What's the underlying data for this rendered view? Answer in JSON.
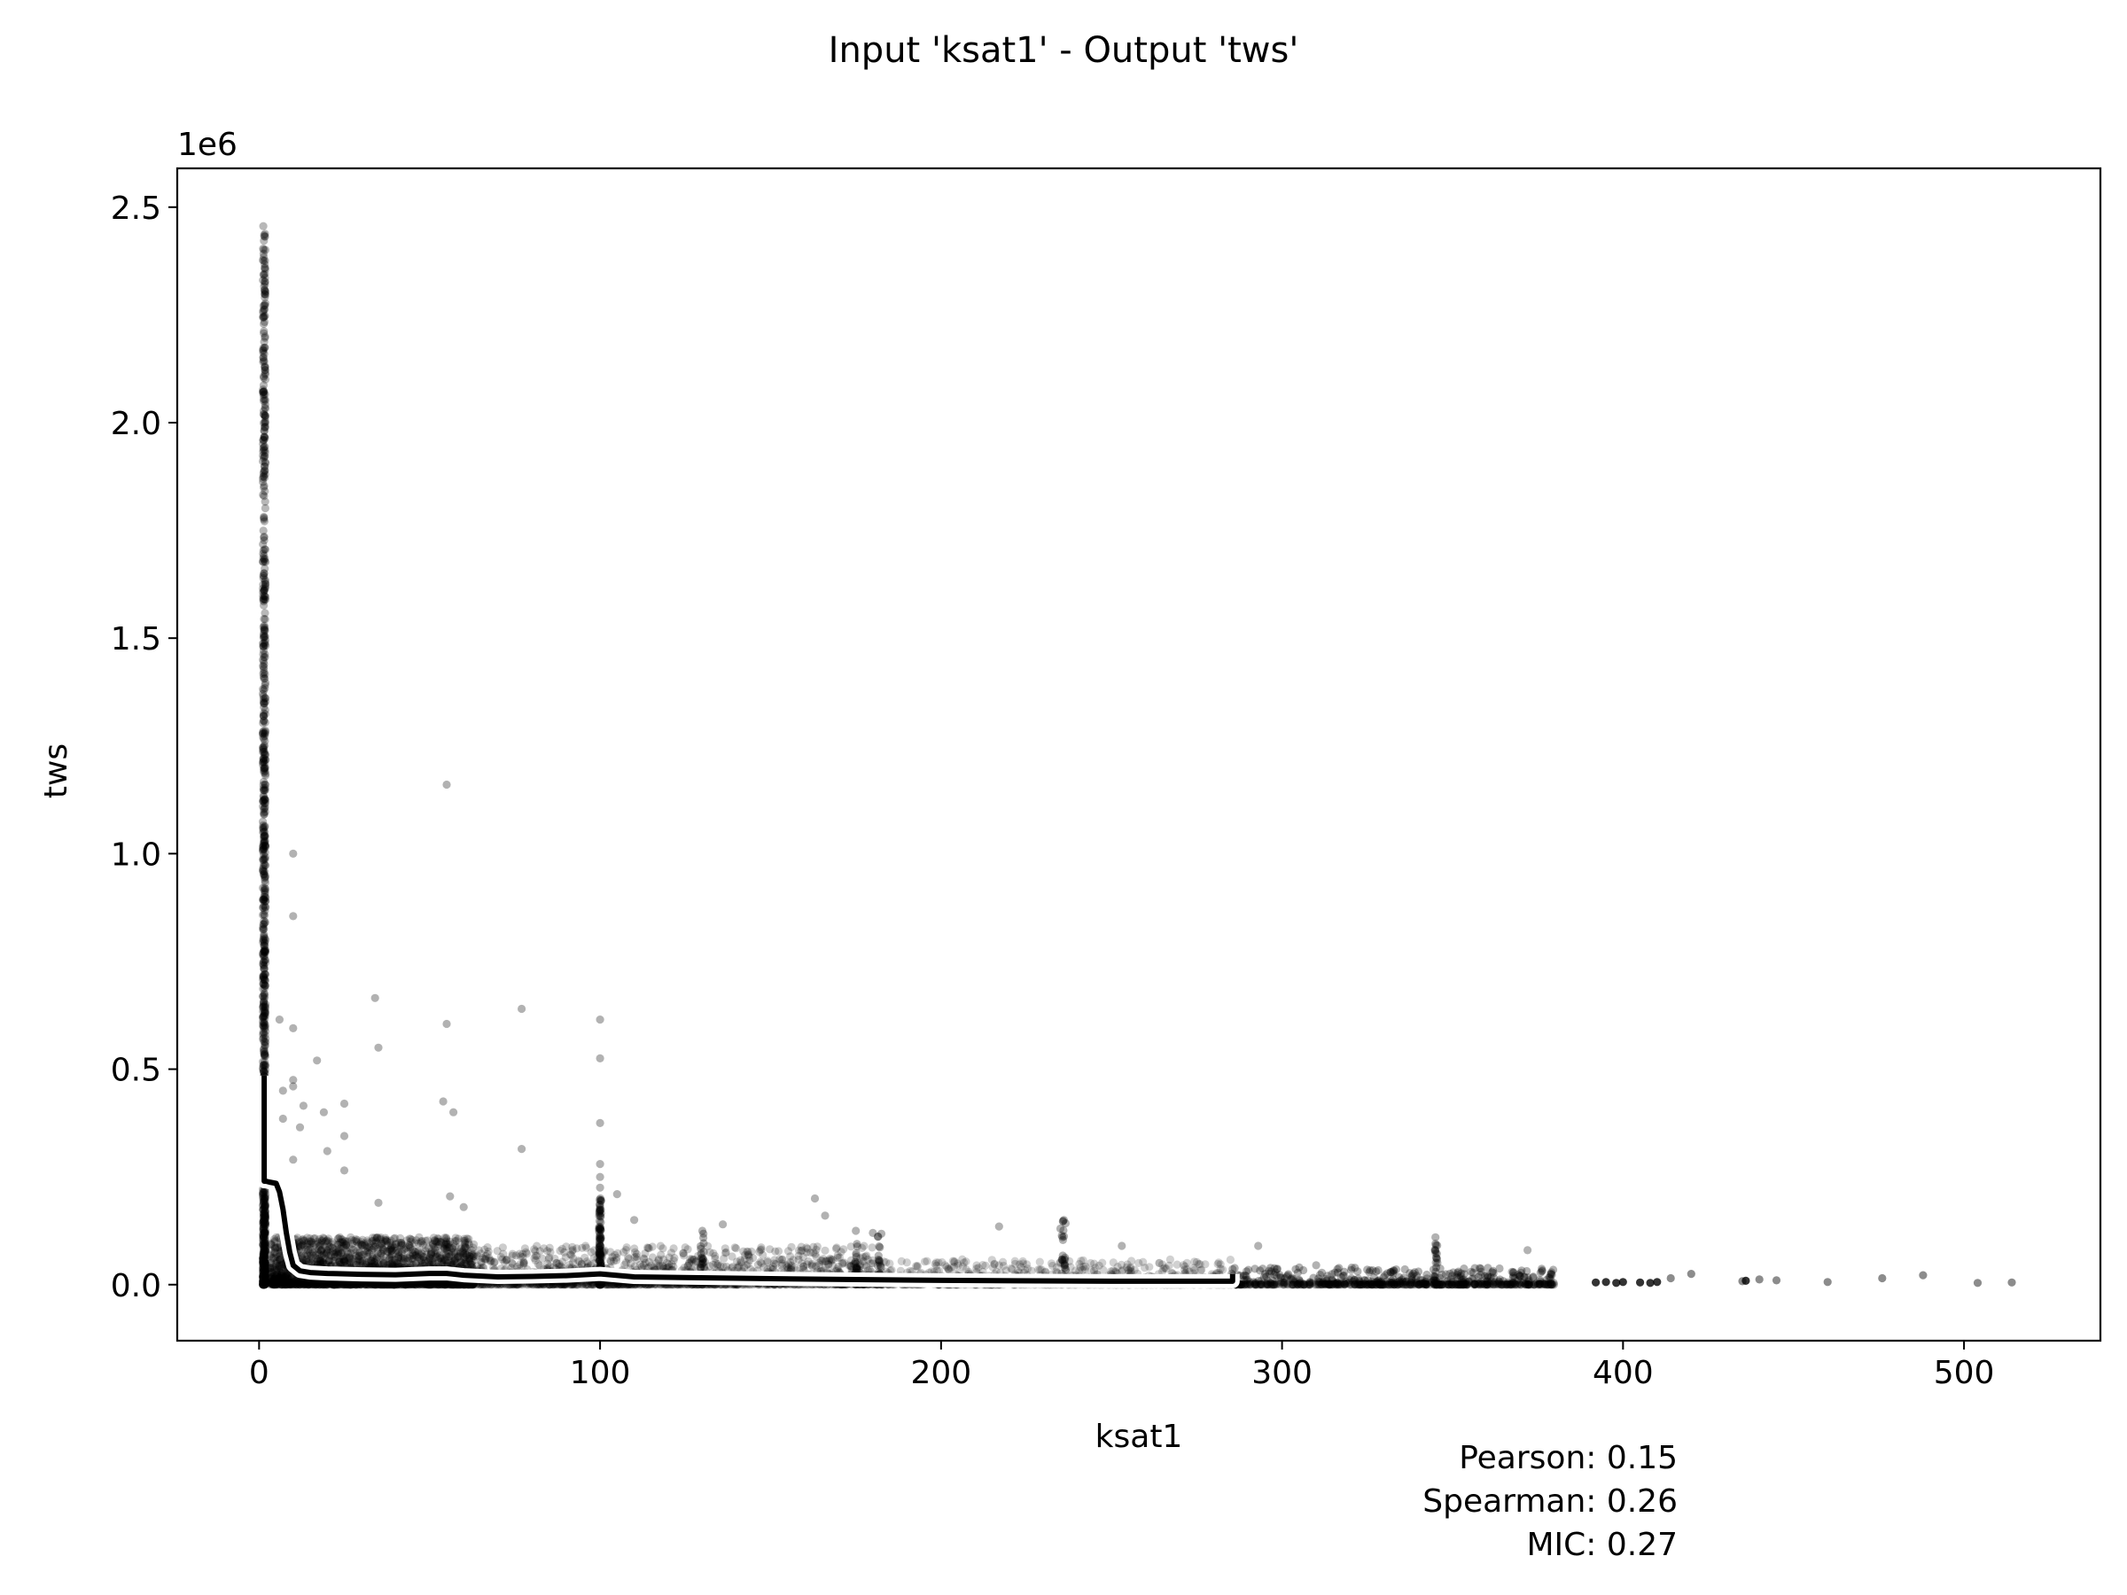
{
  "chart_data": {
    "type": "scatter",
    "title": "Input 'ksat1' - Output 'tws'",
    "xlabel": "ksat1",
    "ylabel": "tws",
    "y_offset_label": "1e6",
    "xlim": [
      -24,
      540
    ],
    "ylim": [
      -130000,
      2590000
    ],
    "x_ticks": [
      0,
      100,
      200,
      300,
      400,
      500
    ],
    "x_tick_labels": [
      "0",
      "100",
      "200",
      "300",
      "400",
      "500"
    ],
    "y_ticks": [
      0,
      500000,
      1000000,
      1500000,
      2000000,
      2500000
    ],
    "y_tick_labels": [
      "0.0",
      "0.5",
      "1.0",
      "1.5",
      "2.0",
      "2.5"
    ],
    "grid": false,
    "stats": [
      "Pearson: 0.15",
      "Spearman: 0.26",
      "MIC: 0.27"
    ],
    "colors": {
      "points": "#000000",
      "trend": "#000000",
      "trend_halo": "#ffffff"
    },
    "outliers": [
      [
        55,
        1160000
      ],
      [
        10,
        1000000
      ],
      [
        10,
        855000
      ],
      [
        34,
        665000
      ],
      [
        77,
        640000
      ],
      [
        100,
        615000
      ],
      [
        6,
        615000
      ],
      [
        55,
        605000
      ],
      [
        10,
        595000
      ],
      [
        35,
        550000
      ],
      [
        100,
        525000
      ],
      [
        17,
        520000
      ],
      [
        10,
        475000
      ],
      [
        7,
        450000
      ],
      [
        10,
        460000
      ],
      [
        54,
        425000
      ],
      [
        25,
        420000
      ],
      [
        13,
        415000
      ],
      [
        57,
        400000
      ],
      [
        19,
        400000
      ],
      [
        100,
        375000
      ],
      [
        7,
        385000
      ],
      [
        12,
        365000
      ],
      [
        25,
        345000
      ],
      [
        77,
        315000
      ],
      [
        20,
        310000
      ],
      [
        10,
        290000
      ],
      [
        100,
        280000
      ],
      [
        25,
        265000
      ],
      [
        100,
        250000
      ],
      [
        100,
        225000
      ],
      [
        105,
        210000
      ],
      [
        163,
        200000
      ],
      [
        56,
        205000
      ],
      [
        35,
        190000
      ],
      [
        60,
        180000
      ],
      [
        166,
        160000
      ],
      [
        100,
        185000
      ],
      [
        236,
        150000
      ],
      [
        110,
        150000
      ],
      [
        136,
        140000
      ],
      [
        253,
        90000
      ],
      [
        293,
        90000
      ],
      [
        345,
        110000
      ],
      [
        345,
        95000
      ],
      [
        372,
        80000
      ],
      [
        235,
        130000
      ],
      [
        217,
        135000
      ],
      [
        180,
        120000
      ],
      [
        175,
        125000
      ],
      [
        130,
        125000
      ],
      [
        264,
        50000
      ],
      [
        310,
        45000
      ]
    ],
    "tail_points": [
      [
        420,
        25000
      ],
      [
        440,
        12000
      ],
      [
        460,
        6000
      ],
      [
        476,
        15000
      ],
      [
        488,
        22000
      ],
      [
        504,
        4000
      ],
      [
        514,
        5000
      ],
      [
        435,
        8000
      ],
      [
        445,
        10000
      ],
      [
        414,
        15000
      ]
    ],
    "trend_line": {
      "x": [
        1.5,
        1.5,
        2,
        3,
        5,
        6,
        7,
        8,
        9,
        10,
        12,
        15,
        20,
        30,
        40,
        50,
        55,
        60,
        70,
        80,
        90,
        100,
        110,
        150,
        200,
        250,
        285,
        285.5,
        285.5
      ],
      "y": [
        485000,
        240000,
        240000,
        238000,
        235000,
        215000,
        175000,
        120000,
        75000,
        45000,
        32000,
        28000,
        26000,
        24000,
        23000,
        26000,
        26000,
        22000,
        18000,
        19000,
        21000,
        25000,
        18000,
        14000,
        10000,
        8000,
        8000,
        8000,
        25000
      ]
    }
  }
}
